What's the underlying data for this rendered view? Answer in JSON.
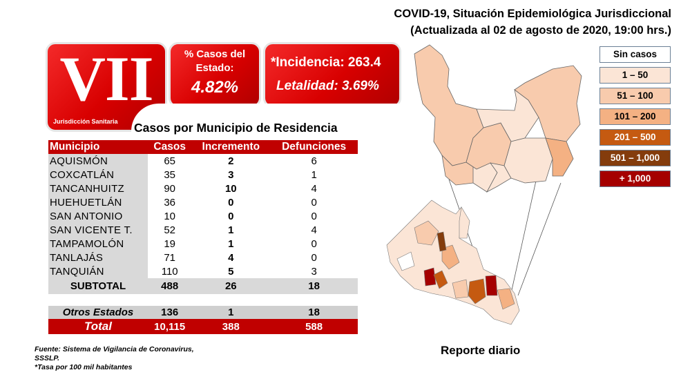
{
  "header": {
    "line1": "COVID-19, Situación Epidemiológica Jurisdiccional",
    "line2": "(Actualizada al 02 de agosto de 2020, 19:00 hrs.)"
  },
  "logo": {
    "numeral": "VII",
    "subtitle": "Jurisdicción Sanitaria"
  },
  "state_pct": {
    "label": "% Casos del Estado:",
    "value": "4.82%"
  },
  "indicators": {
    "incidencia": "*Incidencia: 263.4",
    "letalidad": "Letalidad: 3.69%"
  },
  "table": {
    "title": "Casos por Municipio  de Residencia",
    "columns": [
      "Municipio",
      "Casos",
      "Incremento",
      "Defunciones"
    ],
    "rows": [
      [
        "AQUISMÓN",
        "65",
        "2",
        "6"
      ],
      [
        "COXCATLÁN",
        "35",
        "3",
        "1"
      ],
      [
        "TANCANHUITZ",
        "90",
        "10",
        "4"
      ],
      [
        "HUEHUETLÁN",
        "36",
        "0",
        "0"
      ],
      [
        "SAN ANTONIO",
        "10",
        "0",
        "0"
      ],
      [
        "SAN VICENTE T.",
        "52",
        "1",
        "4"
      ],
      [
        "TAMPAMOLÓN",
        "19",
        "1",
        "0"
      ],
      [
        "TANLAJÁS",
        "71",
        "4",
        "0"
      ],
      [
        "TANQUIÁN",
        "110",
        "5",
        "3"
      ]
    ],
    "subtotal": [
      "SUBTOTAL",
      "488",
      "26",
      "18"
    ],
    "otros": [
      "Otros Estados",
      "136",
      "1",
      "18"
    ],
    "total": [
      "Total",
      "10,115",
      "388",
      "588"
    ]
  },
  "footnotes": [
    "Fuente: Sistema de Vigilancia  de Coronavirus,",
    "SSSLP.",
    "*Tasa por 100 mil habitantes"
  ],
  "report_label": "Reporte diario",
  "legend": [
    {
      "label": "Sin casos",
      "color": "#ffffff",
      "text": "#000"
    },
    {
      "label": "1 – 50",
      "color": "#fbe5d6",
      "text": "#000"
    },
    {
      "label": "51 – 100",
      "color": "#f8cbad",
      "text": "#000"
    },
    {
      "label": "101 – 200",
      "color": "#f4b183",
      "text": "#000"
    },
    {
      "label": "201 – 500",
      "color": "#c55a11",
      "text": "#fff"
    },
    {
      "label": "501 – 1,000",
      "color": "#843c0c",
      "text": "#fff"
    },
    {
      "label": "+ 1,000",
      "color": "#a50000",
      "text": "#fff"
    }
  ]
}
